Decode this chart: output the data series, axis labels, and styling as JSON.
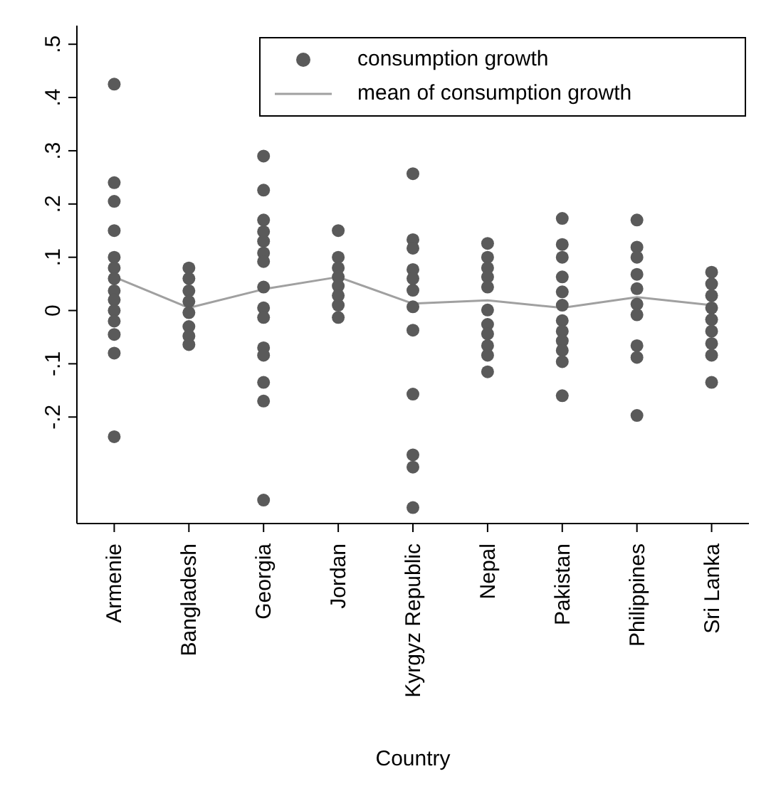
{
  "chart_data": {
    "type": "scatter",
    "xlabel": "Country",
    "categories": [
      "Armenie",
      "Bangladesh",
      "Georgia",
      "Jordan",
      "Kyrgyz Republic",
      "Nepal",
      "Pakistan",
      "Philippines",
      "Sri Lanka"
    ],
    "ylim": [
      -0.4,
      0.535
    ],
    "yticks": [
      {
        "value": -0.2,
        "label": "-.2"
      },
      {
        "value": -0.1,
        "label": "-.1"
      },
      {
        "value": 0,
        "label": "0"
      },
      {
        "value": 0.1,
        "label": ".1"
      },
      {
        "value": 0.2,
        "label": ".2"
      },
      {
        "value": 0.3,
        "label": ".3"
      },
      {
        "value": 0.4,
        "label": ".4"
      },
      {
        "value": 0.5,
        "label": ".5"
      }
    ],
    "grid": false,
    "legend": "top right",
    "marker": "circle",
    "series": [
      {
        "name": "consumption growth",
        "color": "#5a5a5a",
        "x": [
          "Armenie",
          "Armenie",
          "Armenie",
          "Armenie",
          "Armenie",
          "Armenie",
          "Armenie",
          "Armenie",
          "Armenie",
          "Armenie",
          "Armenie",
          "Armenie",
          "Armenie",
          "Armenie",
          "Bangladesh",
          "Bangladesh",
          "Bangladesh",
          "Bangladesh",
          "Bangladesh",
          "Bangladesh",
          "Bangladesh",
          "Bangladesh",
          "Georgia",
          "Georgia",
          "Georgia",
          "Georgia",
          "Georgia",
          "Georgia",
          "Georgia",
          "Georgia",
          "Georgia",
          "Georgia",
          "Georgia",
          "Georgia",
          "Georgia",
          "Georgia",
          "Georgia",
          "Jordan",
          "Jordan",
          "Jordan",
          "Jordan",
          "Jordan",
          "Jordan",
          "Jordan",
          "Jordan",
          "Kyrgyz Republic",
          "Kyrgyz Republic",
          "Kyrgyz Republic",
          "Kyrgyz Republic",
          "Kyrgyz Republic",
          "Kyrgyz Republic",
          "Kyrgyz Republic",
          "Kyrgyz Republic",
          "Kyrgyz Republic",
          "Kyrgyz Republic",
          "Kyrgyz Republic",
          "Kyrgyz Republic",
          "Nepal",
          "Nepal",
          "Nepal",
          "Nepal",
          "Nepal",
          "Nepal",
          "Nepal",
          "Nepal",
          "Nepal",
          "Nepal",
          "Nepal",
          "Pakistan",
          "Pakistan",
          "Pakistan",
          "Pakistan",
          "Pakistan",
          "Pakistan",
          "Pakistan",
          "Pakistan",
          "Pakistan",
          "Pakistan",
          "Pakistan",
          "Pakistan",
          "Philippines",
          "Philippines",
          "Philippines",
          "Philippines",
          "Philippines",
          "Philippines",
          "Philippines",
          "Philippines",
          "Philippines",
          "Philippines",
          "Sri Lanka",
          "Sri Lanka",
          "Sri Lanka",
          "Sri Lanka",
          "Sri Lanka",
          "Sri Lanka",
          "Sri Lanka",
          "Sri Lanka",
          "Sri Lanka"
        ],
        "values": [
          0.425,
          0.24,
          0.205,
          0.15,
          0.1,
          0.08,
          0.06,
          0.037,
          0.02,
          0,
          -0.02,
          -0.045,
          -0.08,
          -0.237,
          0.08,
          0.06,
          0.037,
          0.017,
          -0.004,
          -0.03,
          -0.048,
          -0.064,
          0.29,
          0.226,
          0.17,
          0.148,
          0.13,
          0.108,
          0.092,
          0.044,
          0.005,
          -0.013,
          -0.07,
          -0.084,
          -0.135,
          -0.17,
          -0.356,
          0.15,
          0.1,
          0.08,
          0.063,
          0.046,
          0.028,
          0.01,
          -0.013,
          0.257,
          0.133,
          0.117,
          0.077,
          0.06,
          0.038,
          0.007,
          -0.037,
          -0.157,
          -0.271,
          -0.294,
          -0.37,
          0.126,
          0.1,
          0.08,
          0.063,
          0.044,
          0.001,
          -0.026,
          -0.044,
          -0.066,
          -0.084,
          -0.115,
          0.173,
          0.124,
          0.1,
          0.063,
          0.035,
          0.01,
          -0.019,
          -0.039,
          -0.057,
          -0.075,
          -0.096,
          -0.16,
          0.17,
          0.119,
          0.1,
          0.068,
          0.041,
          0.012,
          -0.008,
          -0.066,
          -0.088,
          -0.197,
          0.072,
          0.05,
          0.028,
          0.005,
          -0.017,
          -0.039,
          -0.062,
          -0.084,
          -0.135
        ]
      },
      {
        "name": "mean of consumption growth",
        "type": "line",
        "color": "#a0a0a0",
        "marker": "none",
        "values": [
          0.063,
          0.005,
          0.04,
          0.063,
          0.013,
          0.019,
          0.005,
          0.025,
          0.01
        ]
      }
    ]
  }
}
